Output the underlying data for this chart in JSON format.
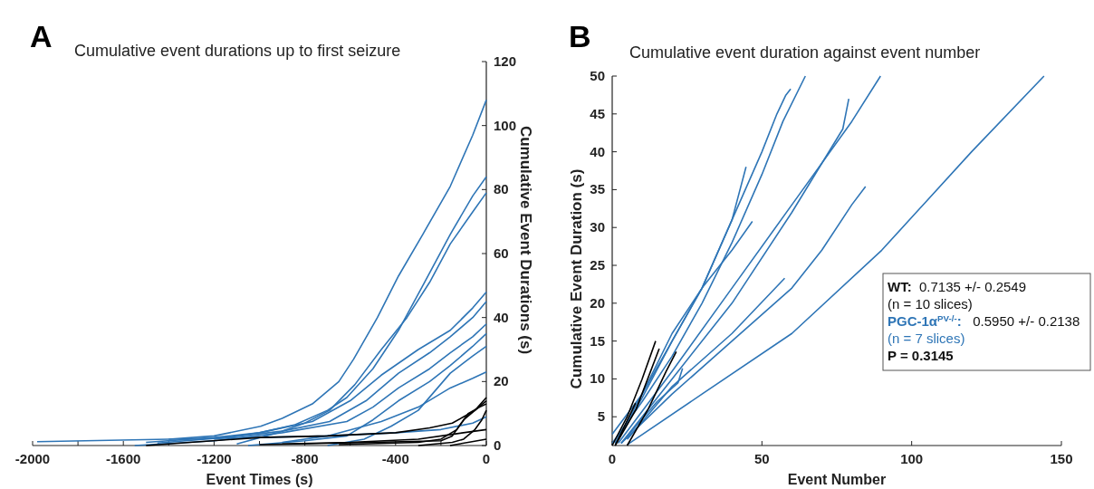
{
  "chart_data": [
    {
      "type": "line",
      "title": "Cumulative event durations up to first seizure",
      "xlabel": "Event Times (s)",
      "ylabel": "Cumulative Event Durations (s)",
      "annotations": [
        "A"
      ],
      "xlim": [
        -2000,
        0
      ],
      "ylim": [
        0,
        120
      ],
      "xticks": [
        -2000,
        {
          "value": -1800,
          "label": null
        },
        -1600,
        {
          "value": -1400,
          "label": null
        },
        -1200,
        {
          "value": -1000,
          "label": null
        },
        -800,
        {
          "value": -600,
          "label": null
        },
        -400,
        {
          "value": -200,
          "label": null
        },
        0
      ],
      "yticks": [
        0,
        20,
        40,
        60,
        80,
        100,
        120
      ],
      "series": [
        {
          "color": "#2e75b6",
          "x": [
            -1400,
            -1200,
            -995,
            -900,
            -767,
            -650,
            -585,
            -480,
            -387,
            -280,
            -159,
            -60,
            0
          ],
          "values": [
            2,
            3,
            6,
            8.5,
            13,
            20,
            27,
            40,
            53,
            66,
            81,
            97,
            108
          ]
        },
        {
          "color": "#2e75b6",
          "x": [
            -1200,
            -1000,
            -843,
            -700,
            -615,
            -500,
            -387,
            -280,
            -159,
            -60,
            0
          ],
          "values": [
            2,
            4,
            6.5,
            11,
            15,
            24,
            36,
            50,
            66,
            78,
            84
          ]
        },
        {
          "color": "#2e75b6",
          "x": [
            -1100,
            -919,
            -800,
            -691,
            -580,
            -463,
            -350,
            -250,
            -159,
            -60,
            0
          ],
          "values": [
            0.5,
            4,
            7,
            11,
            19,
            30,
            40,
            51,
            63,
            73,
            79
          ]
        },
        {
          "color": "#2e75b6",
          "x": [
            -1500,
            -1200,
            -1000,
            -767,
            -600,
            -463,
            -300,
            -159,
            -60,
            0
          ],
          "values": [
            1,
            2.5,
            4,
            7.5,
            14,
            22,
            30,
            36,
            43,
            48
          ]
        },
        {
          "color": "#2e75b6",
          "x": [
            -1450,
            -1150,
            -900,
            -691,
            -530,
            -387,
            -250,
            -159,
            -60,
            0
          ],
          "values": [
            0.8,
            2.5,
            4.5,
            7.5,
            14,
            22.6,
            29,
            34,
            40,
            45
          ]
        },
        {
          "color": "#2e75b6",
          "x": [
            -1550,
            -1200,
            -900,
            -615,
            -500,
            -387,
            -250,
            -159,
            -60,
            0
          ],
          "values": [
            0,
            1.5,
            4,
            7.5,
            12,
            18,
            24,
            29,
            34,
            38
          ]
        },
        {
          "color": "#2e75b6",
          "x": [
            -1050,
            -800,
            -615,
            -500,
            -387,
            -250,
            -159,
            -60,
            0
          ],
          "values": [
            0,
            1.5,
            3,
            8,
            14,
            20,
            25,
            31,
            35
          ]
        },
        {
          "color": "#2e75b6",
          "x": [
            -700,
            -539,
            -420,
            -300,
            -159,
            -60,
            0
          ],
          "values": [
            0,
            2,
            6,
            11,
            22.6,
            28,
            31
          ]
        },
        {
          "color": "#2e75b6",
          "x": [
            -900,
            -700,
            -463,
            -300,
            -159,
            -60,
            0
          ],
          "values": [
            1,
            3,
            7.5,
            12,
            18,
            21,
            23
          ]
        },
        {
          "color": "#2e75b6",
          "x": [
            -1980,
            -1400,
            -1000,
            -700,
            -400,
            -200,
            -60,
            0
          ],
          "values": [
            1.2,
            2,
            2.5,
            3,
            4,
            5,
            7,
            9
          ]
        },
        {
          "color": "#000000",
          "x": [
            -1500,
            -1000,
            -700,
            -400,
            -250,
            -150,
            -100,
            -50,
            0
          ],
          "values": [
            0,
            2.5,
            3,
            4,
            5.5,
            7,
            9,
            11,
            15
          ]
        },
        {
          "color": "#000000",
          "x": [
            -1000,
            -500,
            -200,
            -150,
            -100,
            -50,
            0
          ],
          "values": [
            0.3,
            1,
            1.5,
            3,
            8,
            11,
            14
          ]
        },
        {
          "color": "#000000",
          "x": [
            -650,
            -300,
            -200,
            -130,
            -80,
            -30,
            0
          ],
          "values": [
            0.3,
            1,
            2,
            5,
            10,
            12,
            13
          ]
        },
        {
          "color": "#000000",
          "x": [
            -300,
            -150,
            -100,
            -50,
            -20,
            0
          ],
          "values": [
            0,
            1,
            2,
            5,
            8,
            11
          ]
        },
        {
          "color": "#000000",
          "x": [
            -900,
            -600,
            -300,
            -150,
            0
          ],
          "values": [
            0.5,
            1,
            2,
            3.5,
            5
          ]
        },
        {
          "color": "#000000",
          "x": [
            -160,
            -80,
            0
          ],
          "values": [
            0,
            1,
            2
          ]
        }
      ]
    },
    {
      "type": "line",
      "title": "Cumulative event duration against event number",
      "xlabel": "Event Number",
      "ylabel": "Cumulative Event Duration (s)",
      "annotations": [
        "B",
        "WT:  0.7135 +/- 0.2549",
        "(n = 10 slices)",
        "PGC-1α$^{PV-/-}$:   0.5950 +/- 0.2138",
        "(n = 7 slices)",
        "P =  0.3145"
      ],
      "xlim": [
        0,
        150
      ],
      "ylim": [
        1.2,
        50
      ],
      "xticks": [
        0,
        50,
        100,
        150
      ],
      "yticks": [
        5,
        10,
        15,
        20,
        25,
        30,
        35,
        40,
        45,
        50
      ],
      "series": [
        {
          "color": "#2e75b6",
          "x": [
            1,
            10,
            20,
            30,
            40,
            50,
            55,
            58,
            59.6
          ],
          "values": [
            1.5,
            8,
            15,
            22,
            31,
            40,
            45,
            47.5,
            48.3
          ]
        },
        {
          "color": "#2e75b6",
          "x": [
            0,
            10,
            20,
            30,
            40,
            50,
            57,
            64.5
          ],
          "values": [
            1.5,
            7,
            13,
            20,
            28,
            37,
            44,
            50
          ]
        },
        {
          "color": "#2e75b6",
          "x": [
            1,
            10,
            20,
            30,
            40,
            44.7
          ],
          "values": [
            1.5,
            7.5,
            15,
            22,
            31,
            38
          ]
        },
        {
          "color": "#2e75b6",
          "x": [
            0,
            10,
            20,
            30,
            40,
            46.8
          ],
          "values": [
            2.7,
            8,
            16,
            22,
            27,
            30.8
          ]
        },
        {
          "color": "#2e75b6",
          "x": [
            2,
            20,
            40,
            60,
            80,
            89.6
          ],
          "values": [
            1.5,
            11,
            22,
            33,
            44,
            50
          ]
        },
        {
          "color": "#2e75b6",
          "x": [
            3,
            20,
            40,
            60,
            77,
            78,
            79
          ],
          "values": [
            1.5,
            10,
            20,
            32,
            43,
            45,
            47
          ]
        },
        {
          "color": "#2e75b6",
          "x": [
            3,
            20,
            40,
            60,
            70,
            80,
            84.6
          ],
          "values": [
            1.5,
            8,
            15,
            22,
            27,
            33,
            35.4
          ]
        },
        {
          "color": "#2e75b6",
          "x": [
            5,
            20,
            40,
            57.6
          ],
          "values": [
            2,
            9,
            16,
            23.3
          ]
        },
        {
          "color": "#2e75b6",
          "x": [
            5,
            30,
            60,
            90,
            120,
            144.2
          ],
          "values": [
            1.3,
            8,
            16,
            27,
            40,
            50
          ]
        },
        {
          "color": "#2e75b6",
          "x": [
            3,
            15,
            22,
            23.5
          ],
          "values": [
            1.5,
            7,
            9.5,
            11.4
          ]
        },
        {
          "color": "#000000",
          "x": [
            0,
            5,
            10,
            14.5
          ],
          "values": [
            1.2,
            5,
            10,
            15
          ]
        },
        {
          "color": "#000000",
          "x": [
            1,
            8,
            15.7
          ],
          "values": [
            1.2,
            6,
            14
          ]
        },
        {
          "color": "#000000",
          "x": [
            5,
            12,
            18,
            21.4
          ],
          "values": [
            1.2,
            6,
            11,
            13.6
          ]
        },
        {
          "color": "#000000",
          "x": [
            1,
            7.8
          ],
          "values": [
            1.2,
            6.8
          ]
        }
      ]
    }
  ]
}
